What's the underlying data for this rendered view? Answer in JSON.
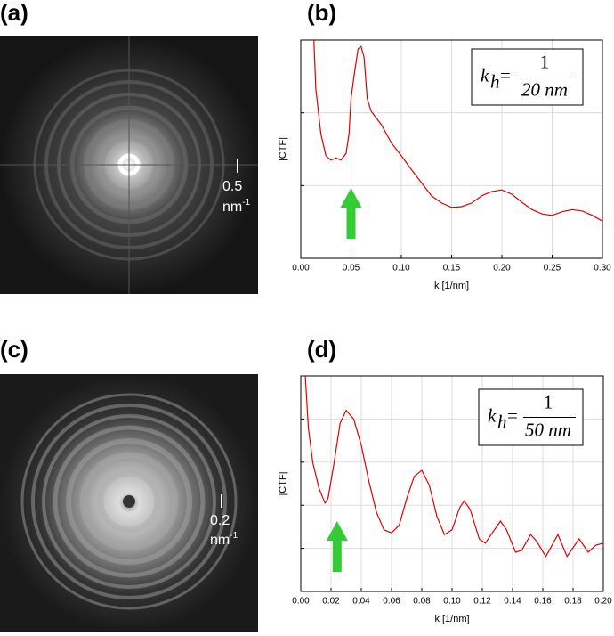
{
  "panels": {
    "labels": [
      "(a)",
      "(b)",
      "(c)",
      "(d)"
    ]
  },
  "images": [
    {
      "scale_value": "0.5",
      "scale_unit": "nm",
      "scale_exp": "-1"
    },
    {
      "scale_value": "0.2",
      "scale_unit": "nm",
      "scale_exp": "-1"
    }
  ],
  "chart_data": [
    {
      "type": "line",
      "x_label": "k [1/nm]",
      "y_label": "|CTF|",
      "x": [
        0.013,
        0.015,
        0.02,
        0.025,
        0.03,
        0.035,
        0.04,
        0.045,
        0.048,
        0.05,
        0.053,
        0.057,
        0.06,
        0.063,
        0.066,
        0.07,
        0.08,
        0.09,
        0.1,
        0.11,
        0.12,
        0.13,
        0.14,
        0.15,
        0.16,
        0.17,
        0.18,
        0.19,
        0.2,
        0.21,
        0.22,
        0.23,
        0.24,
        0.25,
        0.26,
        0.27,
        0.28,
        0.29,
        0.3
      ],
      "color": "#e00000",
      "values": [
        3.0,
        2.33,
        1.71,
        1.41,
        1.35,
        1.38,
        1.35,
        1.44,
        1.71,
        2.2,
        2.51,
        2.88,
        2.91,
        2.76,
        2.2,
        2.02,
        1.84,
        1.59,
        1.41,
        1.22,
        1.04,
        0.86,
        0.76,
        0.7,
        0.71,
        0.76,
        0.86,
        0.92,
        0.94,
        0.88,
        0.77,
        0.67,
        0.61,
        0.59,
        0.64,
        0.67,
        0.65,
        0.59,
        0.51
      ],
      "xlim": [
        0,
        0.3
      ],
      "xticks": [
        {
          "value": 0,
          "label": "0.00"
        },
        {
          "value": 0.05,
          "label": "0.05"
        },
        {
          "value": 0.1,
          "label": "0.10"
        },
        {
          "value": 0.15,
          "label": "0.15"
        },
        {
          "value": 0.2,
          "label": "0.20"
        },
        {
          "value": 0.25,
          "label": "0.25"
        },
        {
          "value": 0.3,
          "label": "0.30"
        }
      ],
      "ylim": [
        0,
        3
      ],
      "yticks": [
        1,
        2
      ],
      "grid": true,
      "annotation": {
        "lhs": "k",
        "sub": "h",
        "equals": "=",
        "numerator": "1",
        "denominator": "20 nm"
      },
      "arrow_x": 0.05,
      "arrow_color": "#33cc33"
    },
    {
      "type": "line",
      "x_label": "k [1/nm]",
      "y_label": "|CTF|",
      "x": [
        0.003,
        0.005,
        0.008,
        0.012,
        0.016,
        0.018,
        0.022,
        0.026,
        0.03,
        0.035,
        0.04,
        0.045,
        0.05,
        0.055,
        0.06,
        0.065,
        0.07,
        0.075,
        0.08,
        0.085,
        0.09,
        0.095,
        0.1,
        0.105,
        0.108,
        0.112,
        0.118,
        0.122,
        0.128,
        0.132,
        0.136,
        0.142,
        0.146,
        0.152,
        0.156,
        0.162,
        0.17,
        0.176,
        0.184,
        0.19,
        0.195,
        0.2
      ],
      "color": "#e00000",
      "values": [
        5.0,
        3.8,
        2.98,
        2.4,
        2.05,
        2.15,
        2.98,
        3.9,
        4.2,
        4.0,
        3.39,
        2.56,
        1.84,
        1.43,
        1.36,
        1.53,
        2.15,
        2.67,
        2.81,
        2.46,
        1.74,
        1.32,
        1.43,
        1.94,
        2.1,
        1.9,
        1.22,
        1.12,
        1.43,
        1.63,
        1.43,
        0.91,
        0.95,
        1.32,
        1.16,
        0.81,
        1.32,
        0.81,
        1.22,
        0.91,
        1.07,
        1.12
      ],
      "xlim": [
        0,
        0.2
      ],
      "xticks": [
        {
          "value": 0,
          "label": "0.00"
        },
        {
          "value": 0.02,
          "label": "0.02"
        },
        {
          "value": 0.04,
          "label": "0.04"
        },
        {
          "value": 0.06,
          "label": "0.06"
        },
        {
          "value": 0.08,
          "label": "0.08"
        },
        {
          "value": 0.1,
          "label": "0.10"
        },
        {
          "value": 0.12,
          "label": "0.12"
        },
        {
          "value": 0.14,
          "label": "0.14"
        },
        {
          "value": 0.16,
          "label": "0.16"
        },
        {
          "value": 0.18,
          "label": "0.18"
        },
        {
          "value": 0.2,
          "label": "0.20"
        }
      ],
      "ylim": [
        0,
        5
      ],
      "yticks": [
        1,
        2,
        3,
        4
      ],
      "grid": true,
      "annotation": {
        "lhs": "k",
        "sub": "h",
        "equals": "=",
        "numerator": "1",
        "denominator": "50 nm"
      },
      "arrow_x": 0.024,
      "arrow_color": "#33cc33"
    }
  ]
}
